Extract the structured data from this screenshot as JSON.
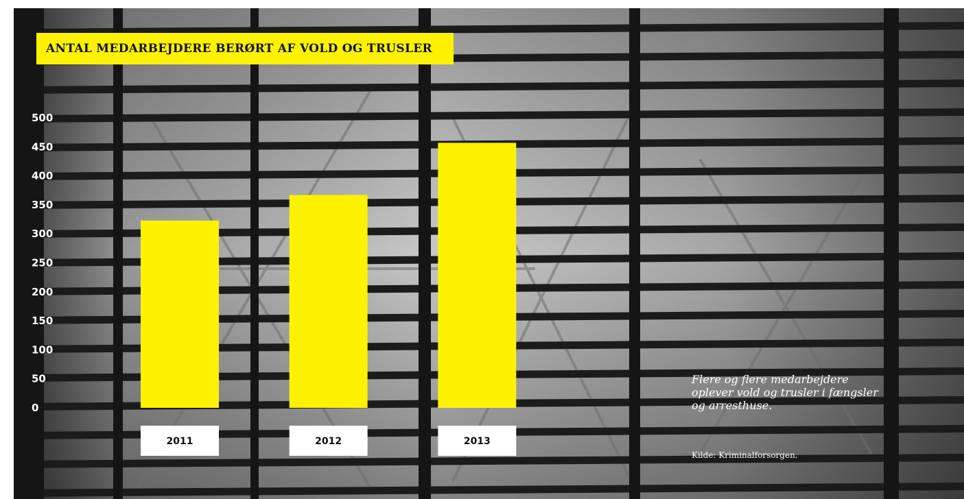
{
  "chart_data": {
    "type": "bar",
    "title": "ANTAL MEDARBEJDERE BERØRT AF VOLD OG TRUSLER",
    "categories": [
      "2011",
      "2012",
      "2013"
    ],
    "values": [
      323,
      367,
      457
    ],
    "y_ticks": [
      "0",
      "50",
      "100",
      "150",
      "200",
      "250",
      "300",
      "350",
      "400",
      "450",
      "500"
    ],
    "ylim": [
      0,
      500
    ],
    "xlabel": "",
    "ylabel": "",
    "grid": false,
    "bar_color": "#fff200"
  },
  "note": "Flere og flere medarbejdere oplever vold og trusler i fængsler og arresthuse.",
  "source": "Kilde: Kriminalforsorgen.",
  "colors": {
    "accent": "#fff200",
    "text_dark": "#111111",
    "text_light": "#ffffff"
  },
  "background": "grayscale photo of a metal grating fence"
}
